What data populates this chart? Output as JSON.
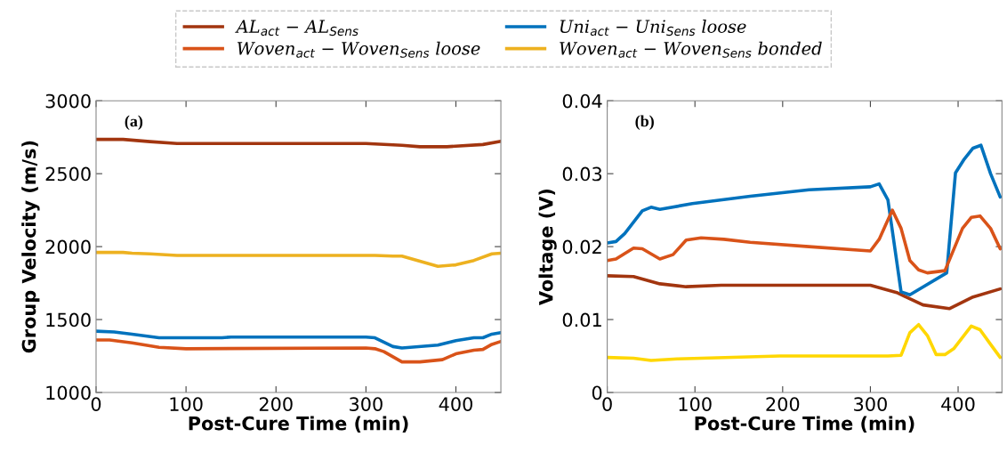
{
  "chart_data": [
    {
      "type": "line",
      "xlabel": "Post-Cure Time (min)",
      "ylabel": "Group Velocity (m/s)",
      "xlim": [
        0,
        450
      ],
      "xticks": [
        0,
        100,
        200,
        300,
        400
      ],
      "ylim": [
        1000,
        3000
      ],
      "yticks": [
        1000,
        1500,
        2000,
        2500,
        3000
      ],
      "grid": false,
      "legend": "top",
      "annotations": [
        "(a)"
      ],
      "series": [
        {
          "name": "AL$_{act}$ − AL$_{Sens}$",
          "color": "#a2350f",
          "x": [
            0,
            30,
            60,
            90,
            300,
            340,
            360,
            390,
            430,
            450
          ],
          "values": [
            2735,
            2735,
            2720,
            2707,
            2707,
            2695,
            2685,
            2685,
            2700,
            2722
          ]
        },
        {
          "name": "Uni$_{act}$ − Uni$_{Sens}$ loose",
          "color": "#0072bd",
          "x": [
            0,
            20,
            40,
            70,
            140,
            150,
            300,
            310,
            330,
            340,
            380,
            400,
            420,
            430,
            440,
            450
          ],
          "values": [
            1420,
            1415,
            1400,
            1375,
            1375,
            1380,
            1380,
            1375,
            1315,
            1305,
            1325,
            1355,
            1375,
            1375,
            1400,
            1410
          ]
        },
        {
          "name": "Woven$_{act}$ − Woven$_{Sens}$ loose",
          "color": "#d95319",
          "x": [
            0,
            15,
            40,
            70,
            100,
            300,
            310,
            320,
            330,
            340,
            360,
            385,
            400,
            420,
            430,
            440,
            450
          ],
          "values": [
            1360,
            1360,
            1340,
            1310,
            1300,
            1305,
            1300,
            1280,
            1245,
            1210,
            1210,
            1225,
            1265,
            1290,
            1295,
            1330,
            1350
          ]
        },
        {
          "name": "Woven$_{act}$ − Woven$_{Sens}$ bonded",
          "color": "#edb120",
          "x": [
            0,
            30,
            40,
            60,
            90,
            310,
            330,
            340,
            360,
            380,
            400,
            420,
            440,
            450
          ],
          "values": [
            1960,
            1960,
            1955,
            1950,
            1940,
            1940,
            1935,
            1935,
            1900,
            1865,
            1875,
            1905,
            1950,
            1955
          ]
        }
      ]
    },
    {
      "type": "line",
      "xlabel": "Post-Cure Time (min)",
      "ylabel": "Voltage (V)",
      "xlim": [
        0,
        450
      ],
      "xticks": [
        0,
        100,
        200,
        300,
        400
      ],
      "ylim": [
        0,
        0.04
      ],
      "yticks": [
        0,
        0.01,
        0.02,
        0.03,
        0.04
      ],
      "grid": false,
      "annotations": [
        "(b)"
      ],
      "series": [
        {
          "color": "#a2350f",
          "x": [
            0,
            30,
            60,
            90,
            130,
            300,
            330,
            360,
            390,
            417,
            448
          ],
          "values": [
            0.016,
            0.0159,
            0.0149,
            0.0145,
            0.0147,
            0.0147,
            0.0137,
            0.012,
            0.0115,
            0.0131,
            0.0142
          ]
        },
        {
          "color": "#0072bd",
          "x": [
            0,
            10,
            20,
            40,
            50,
            60,
            97,
            163,
            230,
            300,
            310,
            320,
            335,
            345,
            387,
            397,
            407,
            417,
            426,
            437,
            448
          ],
          "values": [
            0.0205,
            0.0207,
            0.0218,
            0.0249,
            0.0254,
            0.0251,
            0.0259,
            0.0269,
            0.0278,
            0.0282,
            0.0286,
            0.0264,
            0.0138,
            0.0134,
            0.0164,
            0.0301,
            0.032,
            0.0335,
            0.0339,
            0.03,
            0.0268
          ]
        },
        {
          "color": "#d95319",
          "x": [
            0,
            10,
            30,
            40,
            60,
            75,
            90,
            107,
            133,
            163,
            230,
            300,
            310,
            325,
            335,
            345,
            355,
            365,
            385,
            405,
            415,
            425,
            437,
            448
          ],
          "values": [
            0.0181,
            0.0183,
            0.0198,
            0.0197,
            0.0183,
            0.0189,
            0.0209,
            0.0212,
            0.021,
            0.0206,
            0.02,
            0.0194,
            0.021,
            0.025,
            0.0225,
            0.0181,
            0.0168,
            0.0164,
            0.0167,
            0.0225,
            0.024,
            0.0242,
            0.0225,
            0.0197
          ]
        },
        {
          "color": "#ffd700",
          "x": [
            0,
            30,
            50,
            80,
            197,
            320,
            335,
            345,
            355,
            365,
            375,
            385,
            395,
            415,
            425,
            437,
            448
          ],
          "values": [
            0.0048,
            0.0047,
            0.0044,
            0.0046,
            0.005,
            0.005,
            0.0051,
            0.0082,
            0.0093,
            0.0078,
            0.0052,
            0.0052,
            0.006,
            0.0091,
            0.0086,
            0.0066,
            0.0048
          ]
        }
      ]
    }
  ]
}
